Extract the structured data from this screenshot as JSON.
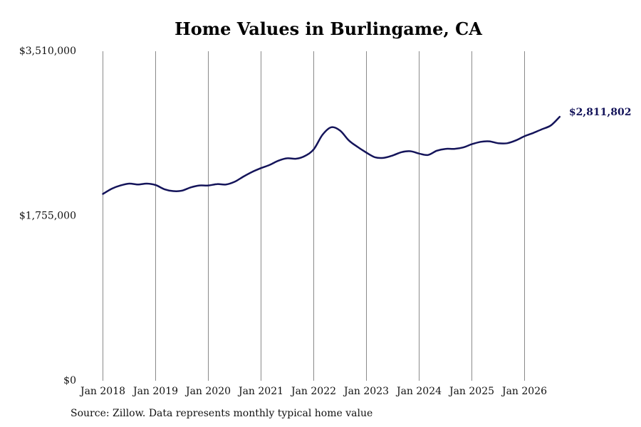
{
  "chart_data": {
    "type": "line",
    "title": "Home Values in Burlingame, CA",
    "xlabel": "",
    "ylabel": "",
    "ylim": [
      0,
      3510000
    ],
    "y_ticks": [
      0,
      1755000,
      3510000
    ],
    "y_tick_labels": [
      "$0",
      "$1,755,000",
      "$3,510,000"
    ],
    "x_ticks": [
      "2018-01",
      "2019-01",
      "2020-01",
      "2021-01",
      "2022-01",
      "2023-01",
      "2024-01",
      "2025-01",
      "2026-01"
    ],
    "x_tick_labels": [
      "Jan 2018",
      "Jan 2019",
      "Jan 2020",
      "Jan 2021",
      "Jan 2022",
      "Jan 2023",
      "Jan 2024",
      "Jan 2025",
      "Jan 2026"
    ],
    "grid": "vertical",
    "line_color": "#14145a",
    "series": [
      {
        "name": "",
        "points": [
          [
            "2018-01",
            1990000
          ],
          [
            "2018-03",
            2045000
          ],
          [
            "2018-05",
            2080000
          ],
          [
            "2018-07",
            2100000
          ],
          [
            "2018-09",
            2090000
          ],
          [
            "2018-11",
            2100000
          ],
          [
            "2019-01",
            2085000
          ],
          [
            "2019-03",
            2040000
          ],
          [
            "2019-05",
            2020000
          ],
          [
            "2019-07",
            2025000
          ],
          [
            "2019-09",
            2060000
          ],
          [
            "2019-11",
            2080000
          ],
          [
            "2020-01",
            2080000
          ],
          [
            "2020-03",
            2095000
          ],
          [
            "2020-05",
            2090000
          ],
          [
            "2020-07",
            2120000
          ],
          [
            "2020-09",
            2175000
          ],
          [
            "2020-11",
            2225000
          ],
          [
            "2021-01",
            2265000
          ],
          [
            "2021-03",
            2300000
          ],
          [
            "2021-05",
            2345000
          ],
          [
            "2021-07",
            2370000
          ],
          [
            "2021-09",
            2365000
          ],
          [
            "2021-11",
            2395000
          ],
          [
            "2022-01",
            2465000
          ],
          [
            "2022-03",
            2620000
          ],
          [
            "2022-05",
            2700000
          ],
          [
            "2022-07",
            2665000
          ],
          [
            "2022-09",
            2560000
          ],
          [
            "2022-11",
            2490000
          ],
          [
            "2023-01",
            2430000
          ],
          [
            "2023-03",
            2380000
          ],
          [
            "2023-05",
            2375000
          ],
          [
            "2023-07",
            2400000
          ],
          [
            "2023-09",
            2435000
          ],
          [
            "2023-11",
            2445000
          ],
          [
            "2024-01",
            2420000
          ],
          [
            "2024-03",
            2405000
          ],
          [
            "2024-05",
            2450000
          ],
          [
            "2024-07",
            2470000
          ],
          [
            "2024-09",
            2470000
          ],
          [
            "2024-11",
            2485000
          ],
          [
            "2025-01",
            2520000
          ],
          [
            "2025-03",
            2545000
          ],
          [
            "2025-05",
            2550000
          ],
          [
            "2025-07",
            2530000
          ],
          [
            "2025-09",
            2530000
          ],
          [
            "2025-11",
            2560000
          ],
          [
            "2026-01",
            2605000
          ],
          [
            "2026-03",
            2640000
          ],
          [
            "2026-05",
            2680000
          ],
          [
            "2026-07",
            2720000
          ],
          [
            "2026-09",
            2811802
          ]
        ]
      }
    ],
    "end_label": "$2,811,802"
  },
  "source_note": "Source: Zillow. Data represents monthly typical home value"
}
